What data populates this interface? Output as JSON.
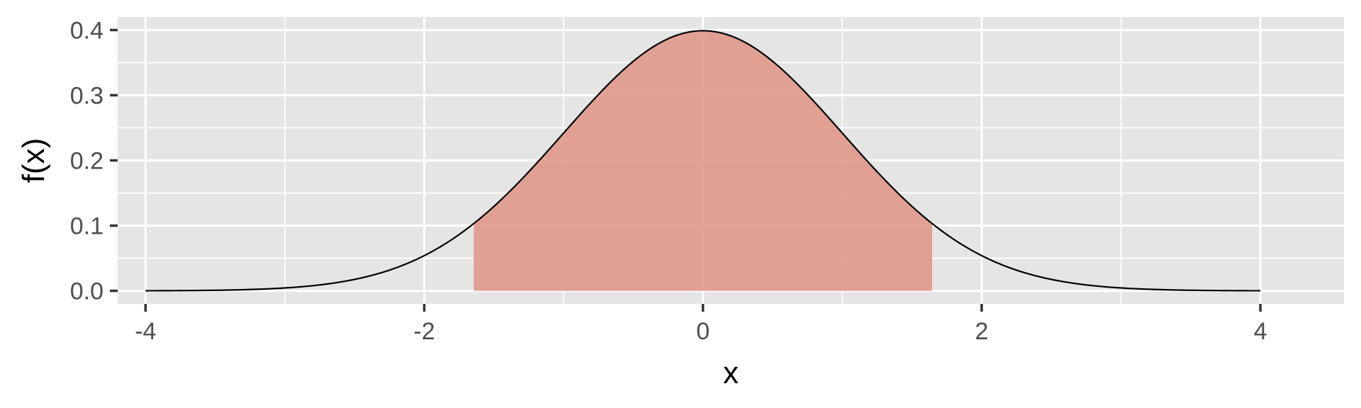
{
  "chart_data": {
    "type": "area",
    "distribution": "standard normal density",
    "xlabel": "x",
    "ylabel": "f(x)",
    "xlim": [
      -4.2,
      4.6
    ],
    "ylim": [
      -0.02,
      0.42
    ],
    "x_ticks": [
      -4,
      -2,
      0,
      2,
      4
    ],
    "x_tick_labels": [
      "-4",
      "-2",
      "0",
      "2",
      "4"
    ],
    "y_ticks": [
      0.0,
      0.1,
      0.2,
      0.3,
      0.4
    ],
    "y_tick_labels": [
      "0.0",
      "0.1",
      "0.2",
      "0.3",
      "0.4"
    ],
    "curve_domain": [
      -4,
      4
    ],
    "shaded_region": [
      -1.645,
      1.645
    ],
    "peak": {
      "x": 0,
      "y": 0.3989
    },
    "grid": true,
    "legend": "none",
    "colors": {
      "panel_background": "#e5e5e5",
      "grid": "#ffffff",
      "shade_fill": "#e0988b",
      "curve": "#000000",
      "tick_mark": "#333333"
    }
  }
}
